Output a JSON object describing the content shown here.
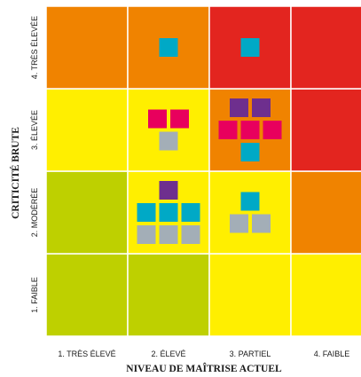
{
  "chart_data": {
    "type": "heatmap",
    "xlabel": "NIVEAU DE MAÎTRISE ACTUEL",
    "ylabel": "CRITICITÉ BRUTE",
    "x_categories": [
      "1. TRÈS ÉLEVÉ",
      "2. ÉLEVÉ",
      "3. PARTIEL",
      "4. FAIBLE"
    ],
    "y_categories": [
      "1. FAIBLE",
      "2. MODÉRÉE",
      "3. ÉLEVÉE",
      "4. TRÈS ÉLEVÉE"
    ],
    "zone_colors": {
      "green": "#bed000",
      "yellow": "#ffef00",
      "orange": "#f08300",
      "red": "#e3251f"
    },
    "cells": [
      [
        "green",
        "green",
        "yellow",
        "yellow"
      ],
      [
        "green",
        "yellow",
        "yellow",
        "orange"
      ],
      [
        "yellow",
        "yellow",
        "orange",
        "red"
      ],
      [
        "orange",
        "orange",
        "red",
        "red"
      ]
    ],
    "marker_colors": {
      "cyan": "#00a9c6",
      "magenta": "#e8005d",
      "purple": "#6e2f8e",
      "grey": "#a3aeb7"
    },
    "markers": [
      {
        "x": 1,
        "y": 3,
        "rows": [
          [
            "cyan"
          ]
        ]
      },
      {
        "x": 2,
        "y": 3,
        "rows": [
          [
            "cyan"
          ]
        ]
      },
      {
        "x": 1,
        "y": 2,
        "rows": [
          [
            "magenta",
            "magenta"
          ],
          [
            "grey"
          ]
        ]
      },
      {
        "x": 2,
        "y": 2,
        "rows": [
          [
            "purple",
            "purple"
          ],
          [
            "magenta",
            "magenta",
            "magenta"
          ],
          [
            "cyan"
          ]
        ]
      },
      {
        "x": 1,
        "y": 1,
        "rows": [
          [
            "purple"
          ],
          [
            "cyan",
            "cyan",
            "cyan"
          ],
          [
            "grey",
            "grey",
            "grey"
          ]
        ]
      },
      {
        "x": 2,
        "y": 1,
        "rows": [
          [
            "cyan"
          ],
          [
            "grey",
            "grey"
          ]
        ]
      }
    ]
  }
}
